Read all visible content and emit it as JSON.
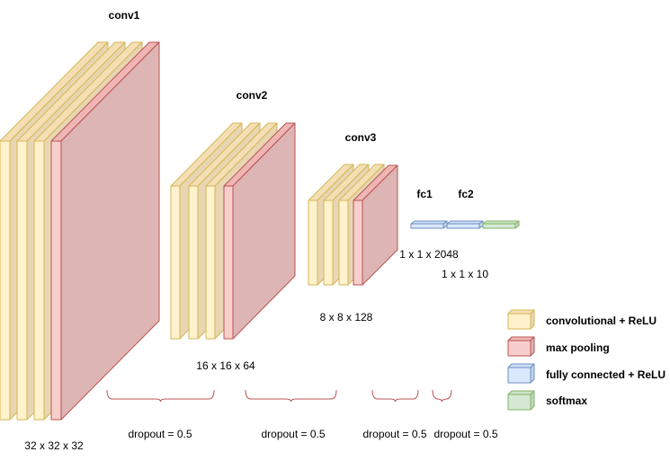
{
  "layers": {
    "conv1": "conv1",
    "conv2": "conv2",
    "conv3": "conv3",
    "fc1": "fc1",
    "fc2": "fc2"
  },
  "dims": {
    "conv1": "32 x 32 x 32",
    "conv2": "16 x 16 x 64",
    "conv3": "8 x 8 x 128",
    "fc1": "1 x 1 x 2048",
    "fc2": "1 x 1 x 10"
  },
  "dropouts": [
    "dropout = 0.5",
    "dropout = 0.5",
    "dropout = 0.5",
    "dropout = 0.5"
  ],
  "legend": {
    "conv_relu": "convolutional + ReLU",
    "max_pool": "max pooling",
    "fc_relu": "fully connected + ReLU",
    "softmax": "softmax"
  },
  "colors": {
    "conv_front": "#fff2cc",
    "conv_side": "#e8d6b3",
    "conv_top": "#f4dfb5",
    "conv_stroke": "#d6b656",
    "pool_front": "#f8cecc",
    "pool_side": "#deb5b5",
    "pool_top": "#f0b6b6",
    "pool_stroke": "#b85450",
    "fc_front": "#dae8fc",
    "fc_side": "#c4d4eb",
    "fc_top": "#cfe0f8",
    "fc_stroke": "#6c8ebf",
    "sm_front": "#d5e8d4",
    "sm_side": "#bdd8bb",
    "sm_top": "#cbe3c8",
    "sm_stroke": "#82b366"
  }
}
